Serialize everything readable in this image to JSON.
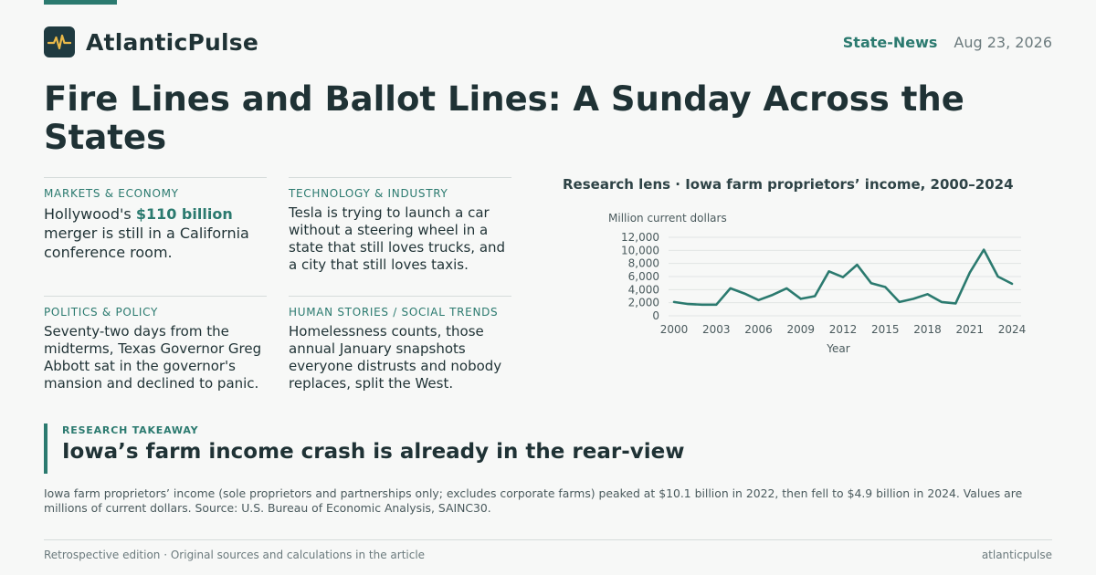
{
  "brand": {
    "name": "AtlanticPulse",
    "logo_icon": "pulse-icon"
  },
  "header": {
    "section": "State-News",
    "date": "Aug 23, 2026"
  },
  "headline": "Fire Lines and Ballot Lines: A Sunday Across the States",
  "cards": [
    {
      "kicker": "MARKETS & ECONOMY",
      "text_before": "Hollywood's ",
      "highlight": "$110 billion",
      "text_after": " merger is still in a California conference room."
    },
    {
      "kicker": "TECHNOLOGY & INDUSTRY",
      "text": "Tesla is trying to launch a car without a steering wheel in a state that still loves trucks, and a city that still loves taxis."
    },
    {
      "kicker": "POLITICS & POLICY",
      "text": "Seventy-two days from the midterms, Texas Governor Greg Abbott sat in the governor's mansion and declined to panic."
    },
    {
      "kicker": "HUMAN STORIES / SOCIAL TRENDS",
      "text": "Homelessness counts, those annual January snapshots everyone distrusts and nobody replaces, split the West."
    }
  ],
  "chart_data": {
    "type": "line",
    "title": "Research lens · Iowa farm proprietors’ income, 2000–2024",
    "ylabel": "Million current dollars",
    "xlabel": "Year",
    "x": [
      2000,
      2001,
      2002,
      2003,
      2004,
      2005,
      2006,
      2007,
      2008,
      2009,
      2010,
      2011,
      2012,
      2013,
      2014,
      2015,
      2016,
      2017,
      2018,
      2019,
      2020,
      2021,
      2022,
      2023,
      2024
    ],
    "values": [
      2100,
      1800,
      1700,
      1700,
      4200,
      3400,
      2400,
      3200,
      4200,
      2600,
      3000,
      6800,
      5900,
      7800,
      5000,
      4400,
      2100,
      2600,
      3300,
      2100,
      1900,
      6600,
      10100,
      6000,
      4900
    ],
    "yticks": [
      "0",
      "2,000",
      "4,000",
      "6,000",
      "8,000",
      "10,000",
      "12,000"
    ],
    "xticks": [
      "2000",
      "2003",
      "2006",
      "2009",
      "2012",
      "2015",
      "2018",
      "2021",
      "2024"
    ],
    "ylim": [
      0,
      12000
    ],
    "xlim": [
      2000,
      2024
    ],
    "grid": true,
    "line_color": "#2b7a6f"
  },
  "takeaway": {
    "label": "RESEARCH TAKEAWAY",
    "title": "Iowa’s farm income crash is already in the rear-view"
  },
  "summary": "Iowa farm proprietors’ income (sole proprietors and partnerships only; excludes corporate farms) peaked at $10.1 billion in 2022, then fell to $4.9 billion in 2024. Values are millions of current dollars. Source: U.S. Bureau of Economic Analysis, SAINC30.",
  "footer": {
    "left": "Retrospective edition · Original sources and calculations in the article",
    "right": "atlanticpulse"
  },
  "colors": {
    "accent": "#2b7a6f",
    "text": "#1f3235",
    "logo_bg": "#1f3a40",
    "logo_mark": "#e9b949"
  }
}
